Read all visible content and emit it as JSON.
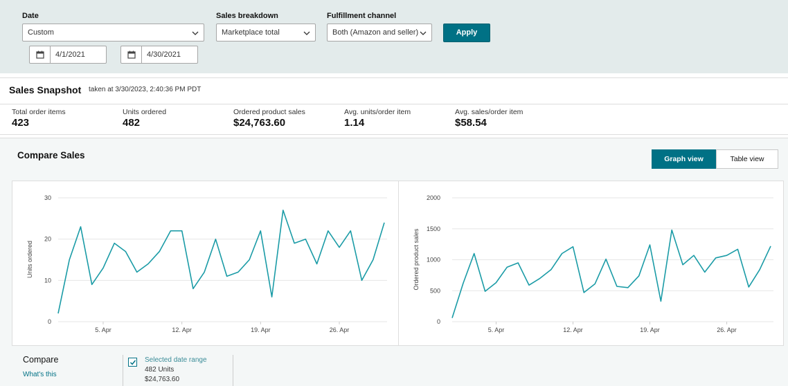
{
  "filters": {
    "date_label": "Date",
    "date_value": "Custom",
    "start_date": "4/1/2021",
    "end_date": "4/30/2021",
    "sales_breakdown_label": "Sales breakdown",
    "sales_breakdown_value": "Marketplace total",
    "fulfillment_label": "Fulfillment channel",
    "fulfillment_value": "Both (Amazon and seller)",
    "apply_label": "Apply"
  },
  "snapshot": {
    "title": "Sales Snapshot",
    "taken_at": "taken at 3/30/2023, 2:40:36 PM PDT",
    "metrics": [
      {
        "label": "Total order items",
        "value": "423"
      },
      {
        "label": "Units ordered",
        "value": "482"
      },
      {
        "label": "Ordered product sales",
        "value": "$24,763.60"
      },
      {
        "label": "Avg. units/order item",
        "value": "1.14"
      },
      {
        "label": "Avg. sales/order item",
        "value": "$58.54"
      }
    ]
  },
  "compare": {
    "title": "Compare Sales",
    "graph_view_label": "Graph view",
    "table_view_label": "Table view",
    "compare_label": "Compare",
    "whats_this_label": "What's this",
    "legend": {
      "name": "Selected date range",
      "units": "482 Units",
      "sales": "$24,763.60"
    }
  },
  "colors": {
    "accent": "#007185",
    "line": "#1a9ba6",
    "filter_bg": "#e3ebeb"
  },
  "chart_data": [
    {
      "type": "line",
      "ylabel": "Units ordered",
      "xlabel": "",
      "x_ticks": [
        "5. Apr",
        "12. Apr",
        "19. Apr",
        "26. Apr"
      ],
      "x_tick_days": [
        5,
        12,
        19,
        26
      ],
      "y_ticks": [
        "0",
        "10",
        "20",
        "30"
      ],
      "ylim": [
        0,
        30
      ],
      "x": [
        1,
        2,
        3,
        4,
        5,
        6,
        7,
        8,
        9,
        10,
        11,
        12,
        13,
        14,
        15,
        16,
        17,
        18,
        19,
        20,
        21,
        22,
        23,
        24,
        25,
        26,
        27,
        28,
        29,
        30
      ],
      "values": [
        2,
        15,
        23,
        9,
        13,
        19,
        17,
        12,
        14,
        17,
        22,
        22,
        8,
        12,
        20,
        11,
        12,
        15,
        22,
        6,
        27,
        19,
        20,
        14,
        22,
        18,
        22,
        10,
        15,
        24
      ],
      "grid": true
    },
    {
      "type": "line",
      "ylabel": "Ordered product sales",
      "xlabel": "",
      "x_ticks": [
        "5. Apr",
        "12. Apr",
        "19. Apr",
        "26. Apr"
      ],
      "x_tick_days": [
        5,
        12,
        19,
        26
      ],
      "y_ticks": [
        "0",
        "500",
        "1000",
        "1500",
        "2000"
      ],
      "ylim": [
        0,
        2000
      ],
      "x": [
        1,
        2,
        3,
        4,
        5,
        6,
        7,
        8,
        9,
        10,
        11,
        12,
        13,
        14,
        15,
        16,
        17,
        18,
        19,
        20,
        21,
        22,
        23,
        24,
        25,
        26,
        27,
        28,
        29,
        30
      ],
      "values": [
        60,
        620,
        1100,
        490,
        630,
        880,
        950,
        590,
        700,
        840,
        1100,
        1210,
        470,
        610,
        1010,
        570,
        550,
        740,
        1240,
        330,
        1480,
        920,
        1070,
        800,
        1030,
        1070,
        1170,
        560,
        840,
        1220
      ],
      "grid": true
    }
  ]
}
